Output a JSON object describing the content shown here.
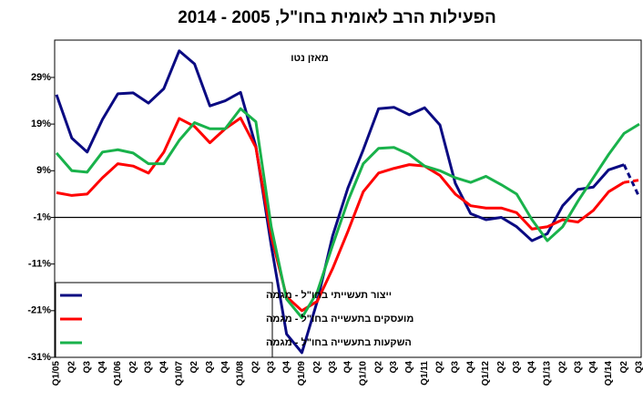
{
  "chart_data": {
    "type": "line",
    "title": "הפעילות הרב לאומית בחו\"ל, 2005 - 2014",
    "subtitle": "מאזן נטו",
    "categories": [
      "Q1/05",
      "Q2",
      "Q3",
      "Q4",
      "Q1/06",
      "Q2",
      "Q3",
      "Q4",
      "Q1/07",
      "Q2",
      "Q3",
      "Q4",
      "Q1/08",
      "Q2",
      "Q3",
      "Q4",
      "Q1/09",
      "Q2",
      "Q3",
      "Q4",
      "Q1/10",
      "Q2",
      "Q3",
      "Q4",
      "Q1/11",
      "Q2",
      "Q3",
      "Q4",
      "Q1/12",
      "Q2",
      "Q3",
      "Q4",
      "Q1/13",
      "Q2",
      "Q3",
      "Q4",
      "Q1/14",
      "Q2",
      "Q3"
    ],
    "series": [
      {
        "name": "ייצור תעשייתי בחו\"ל - מגמה",
        "color": "#0a0a82",
        "dashed_last_segment": true,
        "values": [
          25.3,
          16,
          13,
          20,
          25.5,
          25.7,
          23.5,
          26.6,
          34.7,
          31.9,
          22.9,
          24,
          25.8,
          14.2,
          -7,
          -26,
          -30,
          -19,
          -5,
          5.3,
          13.5,
          22.3,
          22.6,
          21,
          22.5,
          18.8,
          6.3,
          -0.2,
          -1.5,
          -1,
          -3,
          -6,
          -4.5,
          1.5,
          5,
          5.5,
          9.2,
          10.3,
          3.3
        ]
      },
      {
        "name": "מועסקים בתעשייה בחו\"ל - מגמה",
        "color": "#ff0000",
        "dashed_last_segment": true,
        "values": [
          4.3,
          3.7,
          4,
          7.5,
          10.5,
          10,
          8.5,
          13,
          20.2,
          18.5,
          15,
          18,
          20.3,
          14,
          -5,
          -18,
          -21,
          -19,
          -12,
          -4,
          4.5,
          8.5,
          9.5,
          10.3,
          10,
          8,
          4,
          1.5,
          1,
          1,
          0,
          -3.5,
          -3,
          -1.5,
          -2,
          0.5,
          4.5,
          6.5,
          7
        ]
      },
      {
        "name": "השקעות בתעשייה בחו\"ל - מגמה",
        "color": "#19b24b",
        "dashed_last_segment": false,
        "values": [
          12.8,
          9,
          8.7,
          13,
          13.5,
          12.8,
          10.5,
          10.5,
          15.5,
          19.3,
          18,
          18,
          22.3,
          19.5,
          -3,
          -18.5,
          -22.5,
          -17,
          -7,
          2.5,
          10.5,
          13.8,
          14,
          12.5,
          10,
          9,
          7.5,
          6.5,
          7.8,
          6,
          4,
          -1.5,
          -6,
          -3,
          2.5,
          7.5,
          12.5,
          17,
          19
        ]
      }
    ],
    "ylim": [
      -31,
      37
    ],
    "yticks": [
      {
        "value": -31,
        "label": "-31%"
      },
      {
        "value": -21,
        "label": "-21%"
      },
      {
        "value": -11,
        "label": "-11%"
      },
      {
        "value": -1,
        "label": "-1%"
      },
      {
        "value": 9,
        "label": "9%"
      },
      {
        "value": 19,
        "label": "19%"
      },
      {
        "value": 29,
        "label": "29%"
      }
    ],
    "reference_line": -1,
    "legend": "bottom-left"
  }
}
